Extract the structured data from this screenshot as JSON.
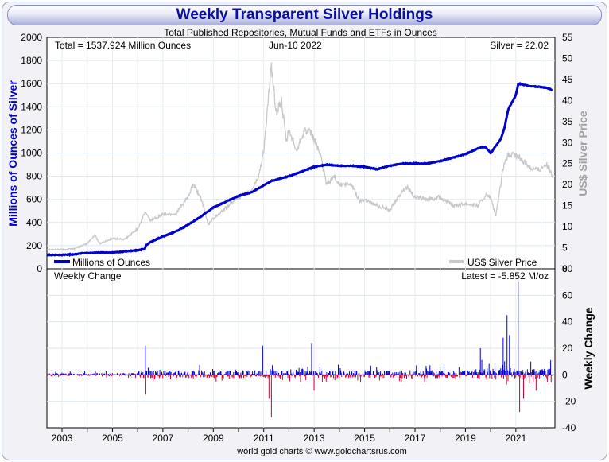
{
  "header": {
    "title": "Weekly Transparent Silver Holdings"
  },
  "footer": {
    "credit": "world gold charts © www.goldchartsrus.com"
  },
  "chart_data": [
    {
      "type": "line",
      "title": "Total Published Repositories, Mutual Funds and ETFs in Ounces",
      "ylabel": "Millions of Ounces of Silver",
      "y2label": "US$ Silver Price",
      "ylim": [
        0,
        2000
      ],
      "y2lim": [
        0,
        55
      ],
      "yticks": [
        0,
        200,
        400,
        600,
        800,
        1000,
        1200,
        1400,
        1600,
        1800,
        2000
      ],
      "y2ticks": [
        0,
        5,
        10,
        15,
        20,
        25,
        30,
        35,
        40,
        45,
        50,
        55
      ],
      "xlim": [
        2002.4,
        2022.55
      ],
      "annotations": {
        "total": "Total = 1537.924 Million Ounces",
        "date": "Jun-10  2022",
        "price": "Silver = 22.02"
      },
      "legend": {
        "position": "bottom",
        "holdings": "Millions of Ounces",
        "price": "US$ Silver Price"
      },
      "series": [
        {
          "name": "Millions of Ounces",
          "color": "#0000cc",
          "x": [
            2002.4,
            2003.0,
            2003.5,
            2003.8,
            2004.0,
            2004.5,
            2005.0,
            2005.5,
            2006.0,
            2006.28,
            2006.32,
            2006.5,
            2007.0,
            2007.5,
            2008.0,
            2008.5,
            2009.0,
            2009.5,
            2010.0,
            2010.5,
            2011.0,
            2011.3,
            2011.5,
            2012.0,
            2012.5,
            2013.0,
            2013.5,
            2014.0,
            2014.5,
            2015.0,
            2015.5,
            2016.0,
            2016.5,
            2017.0,
            2017.5,
            2018.0,
            2018.5,
            2019.0,
            2019.4,
            2019.6,
            2019.8,
            2020.0,
            2020.2,
            2020.4,
            2020.55,
            2020.7,
            2021.0,
            2021.1,
            2021.5,
            2022.0,
            2022.3,
            2022.45
          ],
          "values": [
            120,
            120,
            125,
            135,
            135,
            140,
            140,
            150,
            160,
            170,
            200,
            230,
            280,
            320,
            380,
            450,
            530,
            580,
            630,
            660,
            720,
            760,
            770,
            800,
            840,
            880,
            900,
            890,
            890,
            880,
            860,
            890,
            910,
            910,
            910,
            930,
            960,
            990,
            1030,
            1050,
            1050,
            1000,
            1060,
            1120,
            1220,
            1380,
            1500,
            1600,
            1580,
            1570,
            1560,
            1537.924
          ]
        },
        {
          "name": "US$ Silver Price",
          "axis": "right",
          "color": "#c8c8c8",
          "x": [
            2002.4,
            2003.0,
            2003.5,
            2004.0,
            2004.3,
            2004.5,
            2005.0,
            2005.5,
            2006.0,
            2006.3,
            2006.5,
            2007.0,
            2007.5,
            2008.0,
            2008.2,
            2008.5,
            2008.8,
            2009.0,
            2009.5,
            2010.0,
            2010.5,
            2010.8,
            2011.0,
            2011.3,
            2011.5,
            2011.7,
            2011.9,
            2012.0,
            2012.3,
            2012.6,
            2012.9,
            2013.2,
            2013.5,
            2013.8,
            2014.0,
            2014.5,
            2014.8,
            2015.0,
            2015.5,
            2016.0,
            2016.5,
            2016.7,
            2017.0,
            2017.5,
            2018.0,
            2018.5,
            2019.0,
            2019.5,
            2019.8,
            2020.0,
            2020.2,
            2020.3,
            2020.5,
            2020.7,
            2021.0,
            2021.3,
            2021.6,
            2021.9,
            2022.2,
            2022.45
          ],
          "values": [
            4.6,
            4.6,
            4.8,
            6.0,
            8.0,
            6.0,
            7.2,
            7.0,
            9.5,
            13.5,
            11.5,
            13.0,
            13.0,
            17.0,
            20.0,
            17.0,
            10.5,
            12.0,
            14.5,
            17.0,
            18.5,
            22.0,
            28.0,
            48.0,
            37.0,
            40.0,
            30.0,
            33.0,
            28.0,
            33.0,
            32.0,
            28.0,
            20.0,
            22.0,
            20.0,
            20.0,
            16.0,
            16.5,
            15.0,
            14.0,
            18.5,
            19.5,
            17.0,
            16.5,
            17.0,
            15.0,
            15.5,
            15.0,
            17.5,
            17.0,
            12.5,
            16.0,
            24.0,
            27.0,
            27.0,
            25.5,
            24.0,
            23.5,
            25.0,
            22.0
          ]
        }
      ]
    },
    {
      "type": "bar",
      "title": "Weekly Change",
      "ylabel": "Weekly Change",
      "ylim": [
        -40,
        80
      ],
      "yticks": [
        -40,
        -20,
        0,
        20,
        40,
        60,
        80
      ],
      "xlim": [
        2002.4,
        2022.55
      ],
      "xticks": [
        "2003",
        "2005",
        "2007",
        "2009",
        "2011",
        "2013",
        "2015",
        "2017",
        "2019",
        "2021"
      ],
      "annotations": {
        "latest": "Latest = -5.852 M/oz"
      },
      "positive_color": "#0000cc",
      "negative_color": "#cc0033",
      "spikes": [
        {
          "x": 2006.3,
          "value": 22
        },
        {
          "x": 2006.32,
          "value": -15
        },
        {
          "x": 2010.95,
          "value": 22
        },
        {
          "x": 2011.3,
          "value": -32
        },
        {
          "x": 2011.2,
          "value": -18
        },
        {
          "x": 2012.9,
          "value": 24
        },
        {
          "x": 2013.0,
          "value": -12
        },
        {
          "x": 2019.6,
          "value": 20
        },
        {
          "x": 2020.5,
          "value": 28
        },
        {
          "x": 2020.65,
          "value": 45
        },
        {
          "x": 2020.75,
          "value": 30
        },
        {
          "x": 2021.1,
          "value": 70
        },
        {
          "x": 2021.15,
          "value": -28
        },
        {
          "x": 2021.3,
          "value": -18
        },
        {
          "x": 2021.6,
          "value": 10
        },
        {
          "x": 2021.8,
          "value": -12
        },
        {
          "x": 2022.4,
          "value": -5.852
        }
      ]
    }
  ]
}
